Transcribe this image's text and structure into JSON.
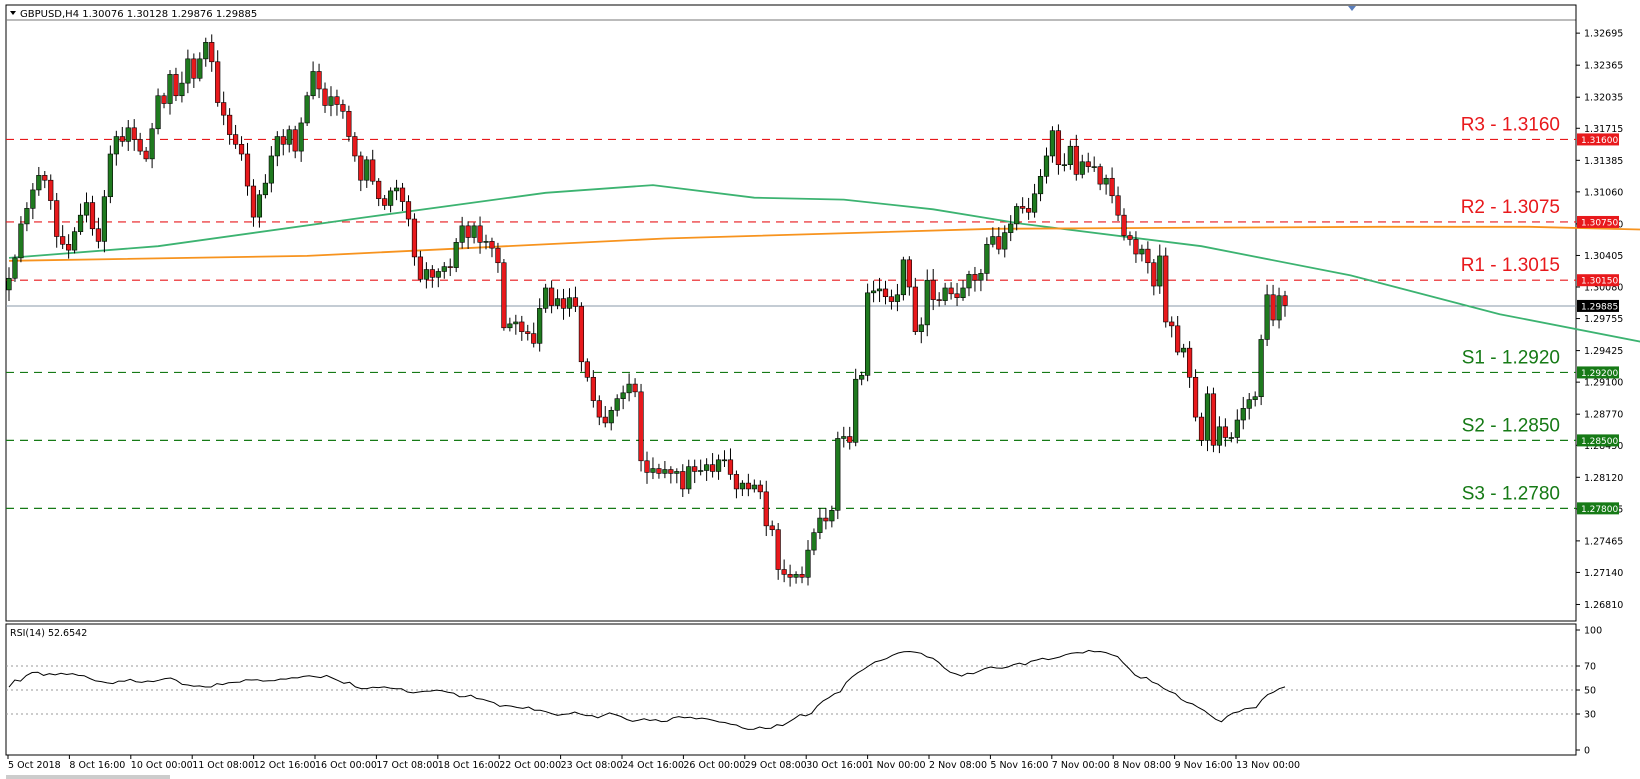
{
  "chart_data": [
    {
      "type": "candlestick",
      "title": "GBPUSD,H4  1.30076 1.30128 1.29876 1.29885",
      "symbol": "GBPUSD",
      "timeframe": "H4",
      "header_values": [
        "1.30076",
        "1.30128",
        "1.29876",
        "1.29885"
      ],
      "last_price": 1.29885,
      "last_price_label": "1.29885",
      "ylim": [
        1.2665,
        1.3282
      ],
      "y_ticks": [
        1.32695,
        1.32365,
        1.32035,
        1.31715,
        1.31385,
        1.3106,
        1.3073,
        1.30405,
        1.3008,
        1.29755,
        1.29425,
        1.291,
        1.2877,
        1.2845,
        1.2812,
        1.27795,
        1.27465,
        1.2714,
        1.2681
      ],
      "y_tick_labels": [
        "1.32695",
        "1.32365",
        "1.32035",
        "1.31715",
        "1.31385",
        "1.31060",
        "1.30730",
        "1.30405",
        "1.30080",
        "1.29755",
        "1.29425",
        "1.29100",
        "1.28770",
        "1.28450",
        "1.28120",
        "1.27795",
        "1.27465",
        "1.27140",
        "1.26810"
      ],
      "x_tick_labels": [
        "5 Oct 2018",
        "8 Oct 16:00",
        "10 Oct 00:00",
        "11 Oct 08:00",
        "12 Oct 16:00",
        "16 Oct 00:00",
        "17 Oct 08:00",
        "18 Oct 16:00",
        "22 Oct 00:00",
        "23 Oct 08:00",
        "24 Oct 16:00",
        "26 Oct 00:00",
        "29 Oct 08:00",
        "30 Oct 16:00",
        "1 Nov 00:00",
        "2 Nov 08:00",
        "5 Nov 16:00",
        "7 Nov 00:00",
        "8 Nov 08:00",
        "9 Nov 16:00",
        "13 Nov 00:00"
      ],
      "levels": [
        {
          "name": "R3",
          "label": "R3 - 1.3160",
          "value": 1.316,
          "badge": "1.31600",
          "kind": "resistance"
        },
        {
          "name": "R2",
          "label": "R2 - 1.3075",
          "value": 1.3075,
          "badge": "1.30750",
          "kind": "resistance"
        },
        {
          "name": "R1",
          "label": "R1 - 1.3015",
          "value": 1.3015,
          "badge": "1.30150",
          "kind": "resistance"
        },
        {
          "name": "S1",
          "label": "S1 - 1.2920",
          "value": 1.292,
          "badge": "1.29200",
          "kind": "support"
        },
        {
          "name": "S2",
          "label": "S2 - 1.2850",
          "value": 1.285,
          "badge": "1.28500",
          "kind": "support"
        },
        {
          "name": "S3",
          "label": "S3 - 1.2780",
          "value": 1.278,
          "badge": "1.27800",
          "kind": "support"
        }
      ],
      "closes": [
        1.3017,
        1.3038,
        1.3073,
        1.3089,
        1.3108,
        1.3123,
        1.3118,
        1.3097,
        1.306,
        1.3052,
        1.3046,
        1.3065,
        1.3082,
        1.3095,
        1.3068,
        1.3055,
        1.3101,
        1.3145,
        1.3163,
        1.3158,
        1.3172,
        1.316,
        1.3148,
        1.314,
        1.3171,
        1.3205,
        1.3197,
        1.3227,
        1.3205,
        1.3218,
        1.3243,
        1.3223,
        1.3243,
        1.326,
        1.324,
        1.3198,
        1.3185,
        1.3165,
        1.3155,
        1.3145,
        1.3112,
        1.308,
        1.3103,
        1.3115,
        1.3143,
        1.3163,
        1.3155,
        1.317,
        1.3148,
        1.3177,
        1.3205,
        1.323,
        1.3212,
        1.3195,
        1.3204,
        1.3196,
        1.3189,
        1.3163,
        1.3143,
        1.3118,
        1.3139,
        1.3117,
        1.3099,
        1.3092,
        1.3107,
        1.311,
        1.3096,
        1.3078,
        1.3039,
        1.3016,
        1.3026,
        1.3018,
        1.3024,
        1.3029,
        1.3028,
        1.3054,
        1.3071,
        1.3059,
        1.3071,
        1.3054,
        1.3055,
        1.3048,
        1.3033,
        1.2966,
        1.297,
        1.2972,
        1.2962,
        1.296,
        1.295,
        1.2986,
        1.3007,
        1.2989,
        1.2996,
        1.2986,
        1.2997,
        1.2988,
        1.2931,
        1.2915,
        1.2891,
        1.2874,
        1.2868,
        1.2881,
        1.2893,
        1.2899,
        1.2908,
        1.29,
        1.2829,
        1.2817,
        1.2821,
        1.2816,
        1.282,
        1.2816,
        1.2818,
        1.28,
        1.2823,
        1.2818,
        1.2819,
        1.2825,
        1.2818,
        1.283,
        1.283,
        1.2815,
        1.28,
        1.2806,
        1.28,
        1.2804,
        1.2797,
        1.2762,
        1.2758,
        1.2717,
        1.2712,
        1.2709,
        1.2712,
        1.2709,
        1.2737,
        1.2755,
        1.277,
        1.2767,
        1.2778,
        1.2852,
        1.2854,
        1.2848,
        1.2913,
        1.2917,
        1.3002,
        1.3004,
        1.3006,
        1.2998,
        1.2993,
        1.3,
        1.3036,
        1.3008,
        1.2962,
        1.2969,
        1.3015,
        1.2995,
        1.2994,
        1.3007,
        1.3001,
        1.2997,
        1.3007,
        1.3021,
        1.3015,
        1.3022,
        1.3052,
        1.306,
        1.3047,
        1.3064,
        1.3073,
        1.3091,
        1.3089,
        1.3085,
        1.3104,
        1.3122,
        1.3143,
        1.3169,
        1.3134,
        1.3134,
        1.3153,
        1.3124,
        1.3137,
        1.3132,
        1.3132,
        1.3114,
        1.312,
        1.3102,
        1.3082,
        1.3061,
        1.3057,
        1.3042,
        1.3047,
        1.3033,
        1.3009,
        1.304,
        1.2972,
        1.2968,
        1.2941,
        1.2945,
        1.2915,
        1.2874,
        1.285,
        1.2898,
        1.2845,
        1.2864,
        1.2853,
        1.2853,
        1.2871,
        1.2883,
        1.2892,
        1.2895,
        1.2954,
        1.3,
        1.2974,
        1.2999,
        1.2989
      ],
      "moving_averages": [
        {
          "color": "#3cb371",
          "description": "faster moving average",
          "points": [
            [
              0,
              1.3038
            ],
            [
              25,
              1.305
            ],
            [
              60,
              1.308
            ],
            [
              90,
              1.3105
            ],
            [
              108,
              1.3113
            ],
            [
              125,
              1.31
            ],
            [
              140,
              1.3098
            ],
            [
              155,
              1.3088
            ],
            [
              170,
              1.3073
            ],
            [
              200,
              1.305
            ],
            [
              225,
              1.302
            ],
            [
              250,
              1.298
            ],
            [
              275,
              1.295
            ],
            [
              300,
              1.2933
            ],
            [
              320,
              1.2922
            ],
            [
              345,
              1.2928
            ],
            [
              380,
              1.294
            ],
            [
              410,
              1.295
            ],
            [
              440,
              1.2968
            ],
            [
              470,
              1.299
            ],
            [
              500,
              1.3005
            ],
            [
              515,
              1.3003
            ],
            [
              530,
              1.2993
            ],
            [
              542,
              1.2984
            ],
            [
              556,
              1.2985
            ]
          ]
        },
        {
          "color": "#f7931e",
          "description": "slower moving average",
          "points": [
            [
              0,
              1.3035
            ],
            [
              50,
              1.304
            ],
            [
              110,
              1.3058
            ],
            [
              165,
              1.3068
            ],
            [
              230,
              1.307
            ],
            [
              255,
              1.307
            ],
            [
              275,
              1.3067
            ],
            [
              300,
              1.3058
            ],
            [
              330,
              1.304
            ],
            [
              355,
              1.302
            ],
            [
              380,
              1.3003
            ],
            [
              395,
              1.2997
            ],
            [
              420,
              1.2997
            ],
            [
              460,
              1.2997
            ],
            [
              500,
              1.3006
            ],
            [
              525,
              1.301
            ],
            [
              535,
              1.3005
            ],
            [
              545,
              1.3003
            ],
            [
              556,
              1.3003
            ]
          ]
        }
      ],
      "trendline": {
        "color": "#000000",
        "from": [
          484,
          1.3143
        ],
        "to": [
          554,
          1.2871
        ]
      },
      "grid": false
    },
    {
      "type": "line",
      "title": "RSI(14) 52.6542",
      "ylim": [
        0,
        100
      ],
      "y_ticks": [
        0,
        30,
        50,
        70,
        100
      ],
      "y_tick_labels": [
        "0",
        "30",
        "50",
        "70",
        "100"
      ],
      "reference_levels": [
        30,
        50,
        70
      ],
      "values": [
        52.4,
        58.3,
        57.4,
        62.1,
        64.6,
        64.8,
        62.2,
        63.6,
        62.6,
        63.9,
        62.9,
        63.7,
        62.2,
        61.9,
        59.6,
        57.6,
        57.0,
        55.9,
        55.3,
        57.4,
        57.3,
        58.9,
        56.9,
        56.3,
        57.5,
        57.0,
        58.2,
        59.5,
        60.0,
        58.1,
        54.7,
        54.2,
        53.2,
        53.4,
        52.5,
        52.5,
        55.3,
        54.5,
        56.0,
        56.3,
        56.6,
        58.6,
        58.3,
        58.6,
        57.4,
        57.7,
        57.8,
        59.2,
        59.1,
        60.2,
        60.1,
        61.3,
        61.8,
        61.1,
        60.3,
        62.2,
        60.0,
        57.8,
        55.6,
        56.4,
        52.6,
        51.2,
        51.2,
        52.3,
        52.0,
        52.6,
        51.6,
        51.0,
        51.1,
        48.3,
        47.6,
        48.3,
        49.0,
        49.1,
        49.9,
        49.3,
        48.2,
        47.4,
        44.4,
        44.5,
        45.7,
        42.9,
        42.3,
        40.8,
        39.4,
        36.3,
        37.1,
        36.6,
        35.4,
        34.7,
        35.8,
        33.2,
        33.1,
        31.9,
        30.3,
        28.8,
        29.7,
        30.1,
        31.7,
        29.8,
        28.7,
        28.7,
        26.8,
        28.9,
        30.9,
        29.5,
        27.9,
        25.4,
        23.8,
        24.8,
        26.0,
        24.6,
        25.3,
        23.7,
        24.0,
        26.8,
        27.8,
        26.8,
        27.3,
        25.9,
        26.6,
        25.8,
        24.7,
        23.3,
        22.9,
        21.5,
        20.8,
        18.4,
        17.2,
        17.3,
        19.2,
        17.9,
        18.2,
        21.1,
        20.3,
        23.2,
        26.1,
        29.5,
        28.4,
        30.6,
        36.7,
        40.9,
        43.6,
        46.9,
        48.5,
        56.3,
        60.8,
        64.3,
        67.1,
        70.4,
        73.4,
        74.6,
        76.2,
        78.9,
        80.8,
        81.8,
        82.1,
        81.4,
        80.6,
        77.6,
        76.5,
        73.1,
        68.3,
        64.8,
        63.4,
        61.6,
        64.0,
        63.5,
        65.7,
        67.8,
        69.2,
        68.3,
        68.1,
        69.2,
        71.2,
        72.3,
        71.0,
        74.0,
        75.0,
        76.4,
        75.3,
        76.3,
        77.5,
        79.4,
        80.6,
        81.2,
        80.8,
        83.0,
        81.9,
        82.1,
        81.2,
        79.3,
        77.8,
        72.6,
        67.8,
        62.5,
        59.9,
        60.5,
        56.6,
        54.8,
        51.2,
        48.8,
        47.1,
        42.2,
        39.7,
        38.4,
        35.4,
        32.9,
        29.2,
        25.6,
        23.5,
        28.1,
        30.8,
        31.8,
        34.3,
        34.9,
        35.3,
        41.8,
        46.2,
        48.2,
        51.1,
        52.6
      ],
      "grid": false
    }
  ]
}
